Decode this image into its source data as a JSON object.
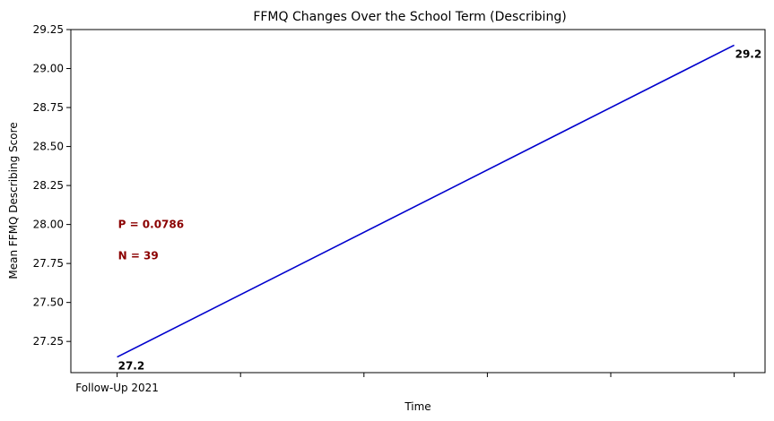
{
  "chart_data": {
    "type": "line",
    "title": "FFMQ Changes Over the School Term (Describing)",
    "xlabel": "Time",
    "ylabel": "Mean FFMQ Describing Score",
    "x": [
      0,
      5
    ],
    "x_tick_labels": [
      "Follow-Up 2021",
      "",
      "",
      "",
      "",
      ""
    ],
    "xlim": [
      -0.375,
      5.25
    ],
    "ylim": [
      27.05,
      29.25
    ],
    "y_ticks": [
      27.25,
      27.5,
      27.75,
      28.0,
      28.25,
      28.5,
      28.75,
      29.0,
      29.25
    ],
    "y_tick_labels": [
      "27.25",
      "27.50",
      "27.75",
      "28.00",
      "28.25",
      "28.50",
      "28.75",
      "29.00",
      "29.25"
    ],
    "series": [
      {
        "values": [
          27.15,
          29.15
        ],
        "color": "#0000cd"
      }
    ],
    "data_labels": [
      "27.2",
      "29.2"
    ],
    "annotations": [
      {
        "text": "P = 0.0786",
        "x": 0,
        "y": 28.0,
        "color": "#8b0000"
      },
      {
        "text": "N =  39",
        "x": 0,
        "y": 27.8,
        "color": "#8b0000"
      }
    ],
    "grid": false
  }
}
